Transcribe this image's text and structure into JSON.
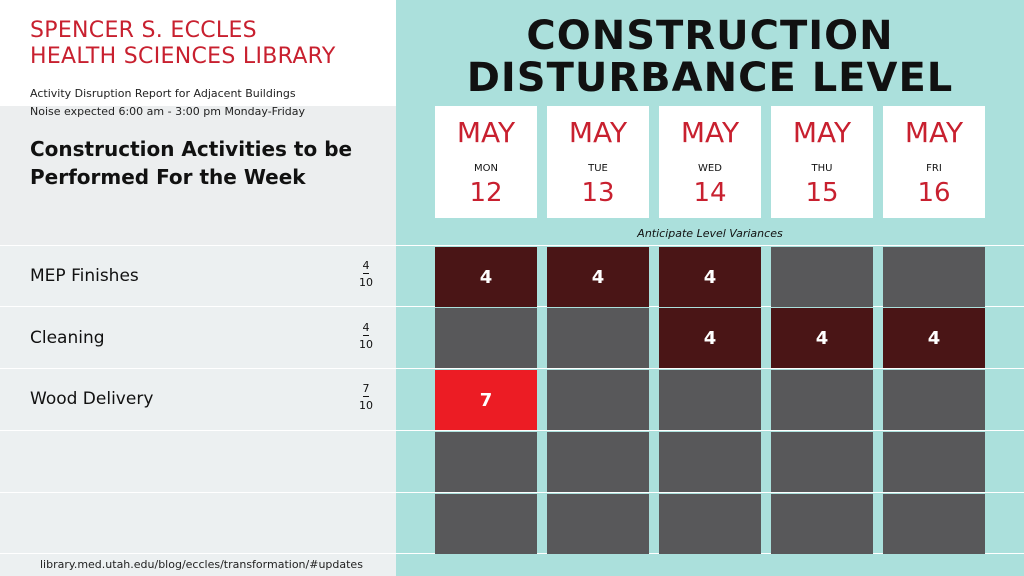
{
  "library": {
    "title_line1": "SPENCER S. ECCLES",
    "title_line2": "HEALTH SCIENCES LIBRARY",
    "subtitle1": "Activity Disruption Report for Adjacent Buildings",
    "subtitle2": "Noise expected 6:00 am - 3:00 pm Monday-Friday"
  },
  "week_heading": {
    "line1": "Construction Activities to be",
    "line2": "Performed For the Week"
  },
  "main_title": {
    "line1": "CONSTRUCTION",
    "line2": "DISTURBANCE LEVEL"
  },
  "days": [
    {
      "month": "MAY",
      "name": "MON",
      "date": "12"
    },
    {
      "month": "MAY",
      "name": "TUE",
      "date": "13"
    },
    {
      "month": "MAY",
      "name": "WED",
      "date": "14"
    },
    {
      "month": "MAY",
      "name": "THU",
      "date": "15"
    },
    {
      "month": "MAY",
      "name": "FRI",
      "date": "16"
    }
  ],
  "variance_note": "Anticipate Level Variances",
  "activities": [
    {
      "name": "MEP Finishes",
      "level": "4",
      "max": "10",
      "cells": [
        "4",
        "4",
        "4",
        "",
        ""
      ]
    },
    {
      "name": "Cleaning",
      "level": "4",
      "max": "10",
      "cells": [
        "",
        "",
        "4",
        "4",
        "4"
      ]
    },
    {
      "name": "Wood Delivery",
      "level": "7",
      "max": "10",
      "cells": [
        "7",
        "",
        "",
        "",
        ""
      ]
    },
    {
      "name": "",
      "level": "",
      "max": "",
      "cells": [
        "",
        "",
        "",
        "",
        ""
      ]
    },
    {
      "name": "",
      "level": "",
      "max": "",
      "cells": [
        "",
        "",
        "",
        "",
        ""
      ]
    }
  ],
  "colors": {
    "brand_red": "#c8202f",
    "level_4": "#4a1516",
    "level_7": "#ec1c24",
    "empty_cell": "#58585a",
    "panel": "#abe0dc"
  },
  "footer_url": "library.med.utah.edu/blog/eccles/transformation/#updates"
}
